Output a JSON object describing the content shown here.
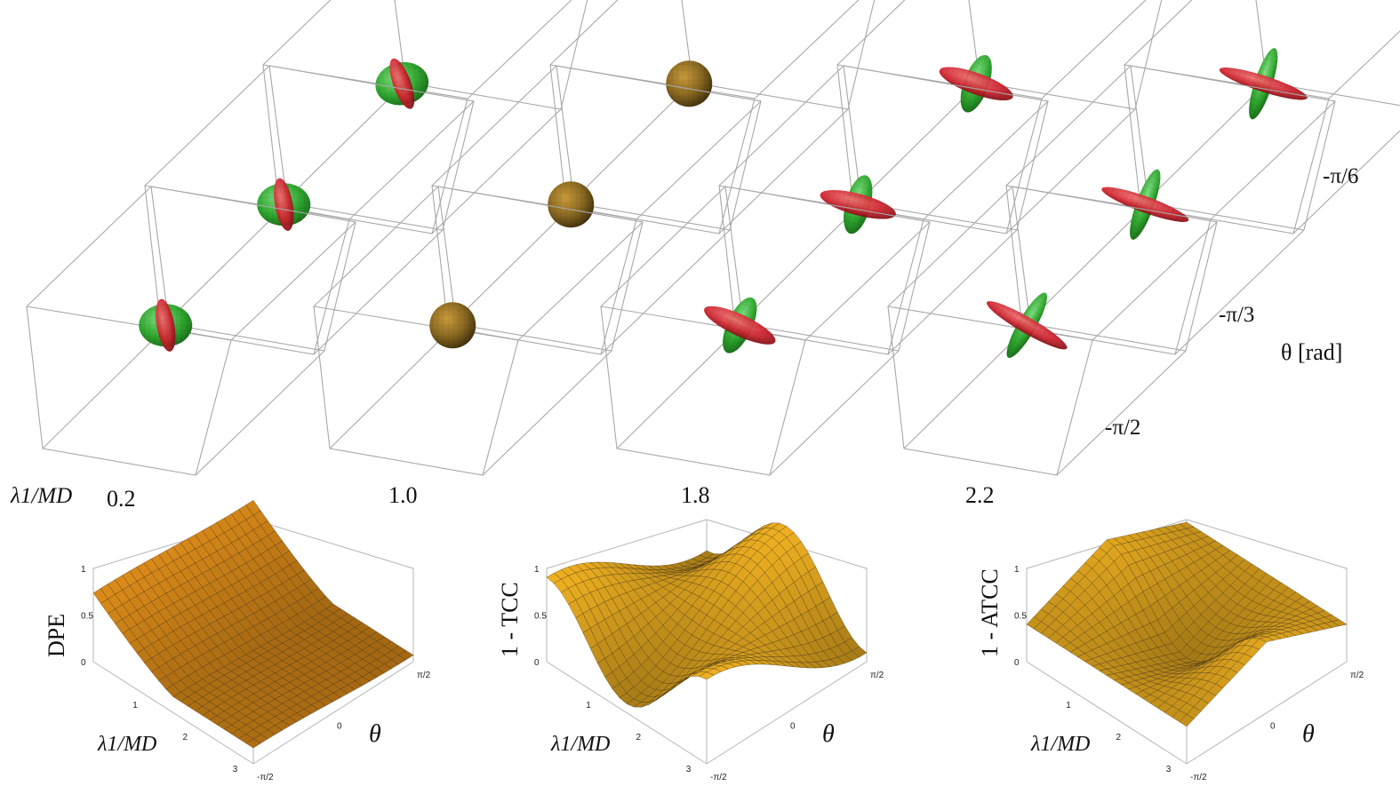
{
  "top_panel": {
    "x_axis_label": "λ1/MD",
    "x_axis_values": [
      "0.2",
      "1.0",
      "1.8",
      "2.2"
    ],
    "y_axis_label": "θ [rad]",
    "y_axis_values": [
      "-π/6",
      "-π/3",
      "-π/2"
    ],
    "ellipsoid_colors": {
      "green": "#2fa52f",
      "red": "#c8202a",
      "sphere": "#8a6b2a"
    },
    "box_color": "#a8a8a8"
  },
  "surfaces": [
    {
      "z_label": "DPE",
      "x_label": "λ1/MD",
      "y_label": "θ",
      "z_ticks": [
        "0",
        "0.5",
        "1"
      ],
      "x_ticks": [
        "1",
        "2",
        "3"
      ],
      "y_ticks": [
        "-π/2",
        "0",
        "π/2"
      ],
      "color": "#f39a1e"
    },
    {
      "z_label": "1 - TCC",
      "x_label": "λ1/MD",
      "y_label": "θ",
      "z_ticks": [
        "0",
        "0.5",
        "1"
      ],
      "x_ticks": [
        "1",
        "2",
        "3"
      ],
      "y_ticks": [
        "-π/2",
        "0",
        "π/2"
      ],
      "color": "#f6b625"
    },
    {
      "z_label": "1 - ATCC",
      "x_label": "λ1/MD",
      "y_label": "θ",
      "z_ticks": [
        "0",
        "0.5",
        "1"
      ],
      "x_ticks": [
        "1",
        "2",
        "3"
      ],
      "y_ticks": [
        "-π/2",
        "0",
        "π/2"
      ],
      "color": "#f6b625"
    }
  ]
}
